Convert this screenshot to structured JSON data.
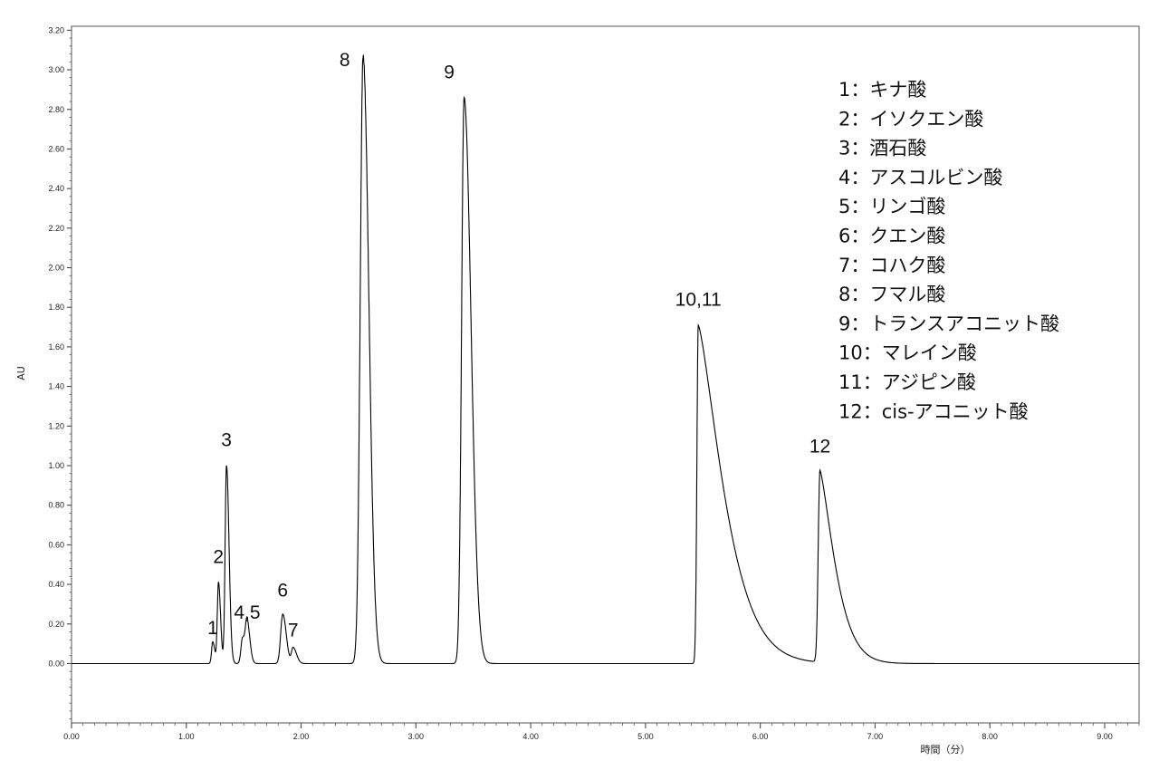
{
  "chart_data": {
    "type": "line",
    "xlabel": "時間（分）",
    "ylabel": "AU",
    "xlim": [
      0.0,
      9.3
    ],
    "ylim": [
      -0.3,
      3.22
    ],
    "x_ticks": [
      "0.00",
      "1.00",
      "2.00",
      "3.00",
      "4.00",
      "5.00",
      "6.00",
      "7.00",
      "8.00",
      "9.00"
    ],
    "y_ticks": [
      "0.00",
      "0.20",
      "0.40",
      "0.60",
      "0.80",
      "1.00",
      "1.20",
      "1.40",
      "1.60",
      "1.80",
      "2.00",
      "2.20",
      "2.40",
      "2.60",
      "2.80",
      "3.00",
      "3.20"
    ],
    "grid": false,
    "series": [
      {
        "line_color": "#000000",
        "peaks": [
          {
            "label": "1",
            "rt": 1.23,
            "height": 0.11
          },
          {
            "label": "2",
            "rt": 1.28,
            "height": 0.41
          },
          {
            "label": "3",
            "rt": 1.35,
            "height": 1.0
          },
          {
            "label": "4,5",
            "rt": 1.49,
            "height": 0.13
          },
          {
            "label": "4,5",
            "rt": 1.53,
            "height": 0.2
          },
          {
            "label": "6",
            "rt": 1.84,
            "height": 0.25
          },
          {
            "label": "7",
            "rt": 1.93,
            "height": 0.08
          },
          {
            "label": "8",
            "rt": 2.54,
            "height": 3.07
          },
          {
            "label": "9",
            "rt": 3.42,
            "height": 2.86
          },
          {
            "label": "10,11",
            "rt": 5.46,
            "height": 1.71
          },
          {
            "label": "12",
            "rt": 6.52,
            "height": 0.97
          }
        ]
      }
    ],
    "peak_annotations": [
      {
        "text": "1",
        "rt": 1.23,
        "y": 0.12
      },
      {
        "text": "2",
        "rt": 1.28,
        "y": 0.48
      },
      {
        "text": "3",
        "rt": 1.35,
        "y": 1.07
      },
      {
        "text": "4,5",
        "rt": 1.53,
        "y": 0.2
      },
      {
        "text": "6",
        "rt": 1.84,
        "y": 0.31
      },
      {
        "text": "7",
        "rt": 1.93,
        "y": 0.11
      },
      {
        "text": "8",
        "rt": 2.38,
        "y": 2.99
      },
      {
        "text": "9",
        "rt": 3.29,
        "y": 2.93
      },
      {
        "text": "10,11",
        "rt": 5.46,
        "y": 1.78
      },
      {
        "text": "12",
        "rt": 6.52,
        "y": 1.04
      }
    ],
    "legend": {
      "placement": "top-right",
      "entries": [
        "1：キナ酸",
        "2：イソクエン酸",
        "3：酒石酸",
        "4：アスコルビン酸",
        "5：リンゴ酸",
        "6：クエン酸",
        "7：コハク酸",
        "8：フマル酸",
        "9：トランスアコニット酸",
        "10：マレイン酸",
        "11：アジピン酸",
        "12：cis-アコニット酸"
      ]
    }
  }
}
